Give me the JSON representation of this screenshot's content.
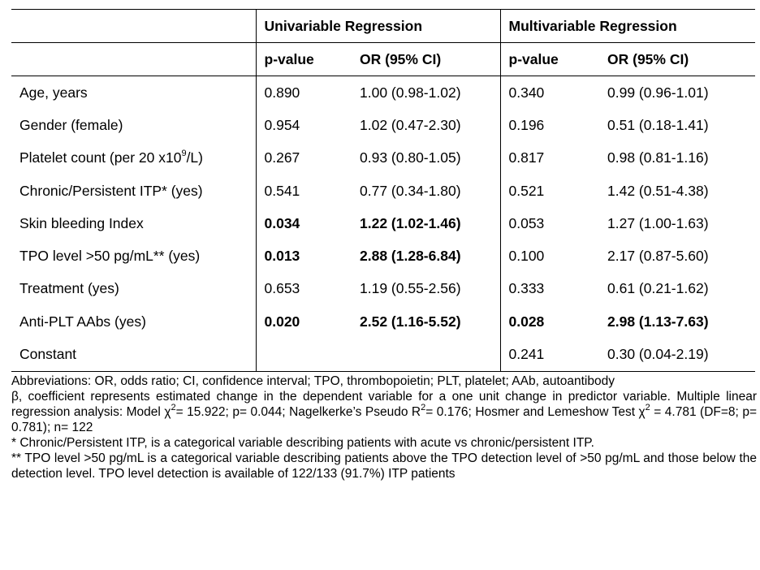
{
  "header": {
    "uni": "Univariable Regression",
    "multi": "Multivariable Regression",
    "pvalue": "p-value",
    "or": "OR (95% CI)"
  },
  "rows": [
    {
      "label": "Age, years",
      "up": "0.890",
      "uor": "1.00 (0.98-1.02)",
      "mp": "0.340",
      "mor": "0.99 (0.96-1.01)"
    },
    {
      "label": "Gender (female)",
      "up": "0.954",
      "uor": "1.02 (0.47-2.30)",
      "mp": "0.196",
      "mor": "0.51 (0.18-1.41)"
    },
    {
      "label_pre": "Platelet count (per 20 x10",
      "label_sup": "9",
      "label_post": "/L)",
      "up": "0.267",
      "uor": "0.93 (0.80-1.05)",
      "mp": "0.817",
      "mor": "0.98 (0.81-1.16)"
    },
    {
      "label": "Chronic/Persistent ITP* (yes)",
      "up": "0.541",
      "uor": "0.77 (0.34-1.80)",
      "mp": "0.521",
      "mor": "1.42 (0.51-4.38)"
    },
    {
      "label": "Skin bleeding Index",
      "up": "0.034",
      "uor": "1.22 (1.02-1.46)",
      "mp": "0.053",
      "mor": "1.27 (1.00-1.63)"
    },
    {
      "label": "TPO level >50 pg/mL** (yes)",
      "up": "0.013",
      "uor": "2.88 (1.28-6.84)",
      "mp": "0.100",
      "mor": "2.17 (0.87-5.60)"
    },
    {
      "label": "Treatment (yes)",
      "up": "0.653",
      "uor": "1.19 (0.55-2.56)",
      "mp": "0.333",
      "mor": "0.61 (0.21-1.62)"
    },
    {
      "label": "Anti-PLT AAbs (yes)",
      "up": "0.020",
      "uor": "2.52 (1.16-5.52)",
      "mp": "0.028",
      "mor": "2.98 (1.13-7.63)"
    },
    {
      "label": "Constant",
      "up": "",
      "uor": "",
      "mp": "0.241",
      "mor": "0.30 (0.04-2.19)"
    }
  ],
  "notes": {
    "abbrev": "Abbreviations: OR, odds ratio; CI, confidence interval; TPO, thrombopoietin; PLT, platelet; AAb, autoantibody",
    "beta_a": "β, coefficient represents estimated change in the dependent variable for a one unit change in predictor variable. Multiple linear regression analysis: Model χ",
    "beta_sup1": "2",
    "beta_b": "= 15.922; p= 0.044; Nagelkerke’s Pseudo R",
    "beta_sup2": "2",
    "beta_c": "= 0.176; Hosmer and Lemeshow Test χ",
    "beta_sup3": "2",
    "beta_d": " = 4.781 (DF=8; p= 0.781); n= 122",
    "star1": "* Chronic/Persistent ITP, is a categorical variable describing patients with acute vs chronic/persistent ITP.",
    "star2": "** TPO level >50 pg/mL is a categorical variable describing patients above the TPO detection level of >50 pg/mL and those below the detection level. TPO level detection is available of 122/133 (91.7%) ITP patients"
  }
}
